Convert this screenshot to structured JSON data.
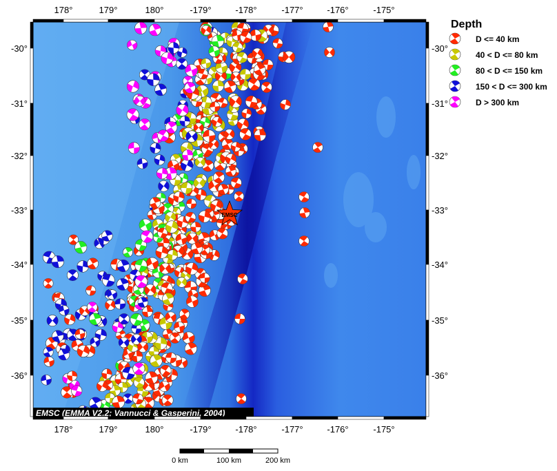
{
  "map": {
    "lon_ticks_top": [
      "178°",
      "179°",
      "180°",
      "-179°",
      "-178°",
      "-177°",
      "-176°",
      "-175°"
    ],
    "lon_ticks_bottom": [
      "178°",
      "179°",
      "180°",
      "-179°",
      "-178°",
      "-177°",
      "-176°",
      "-175°"
    ],
    "lat_ticks_left": [
      "-30°",
      "-31°",
      "-32°",
      "-33°",
      "-34°",
      "-35°",
      "-36°"
    ],
    "lat_ticks_right": [
      "-30°",
      "-31°",
      "-32°",
      "-33°",
      "-34°",
      "-35°",
      "-36°"
    ],
    "epicenter_label": "EMSC",
    "credit": "EMSC (EMMA V2.2; Vannucci & Gasperini, 2004)"
  },
  "legend": {
    "title": "Depth",
    "items": [
      {
        "label": "D <= 40 km",
        "color": "#ff2a00"
      },
      {
        "label": "40 < D <= 80 km",
        "color": "#c8c800"
      },
      {
        "label": "80 < D <= 150 km",
        "color": "#22ee22"
      },
      {
        "label": "150 < D <= 300 km",
        "color": "#1010d8"
      },
      {
        "label": "D > 300 km",
        "color": "#ff00ff"
      }
    ]
  },
  "scale_bar": {
    "labels": [
      "0 km",
      "100 km",
      "200 km"
    ]
  },
  "colors": {
    "ocean_light": "#4ea0ee",
    "ocean_deep": "#1020c8",
    "trench": "#0a10a0"
  }
}
